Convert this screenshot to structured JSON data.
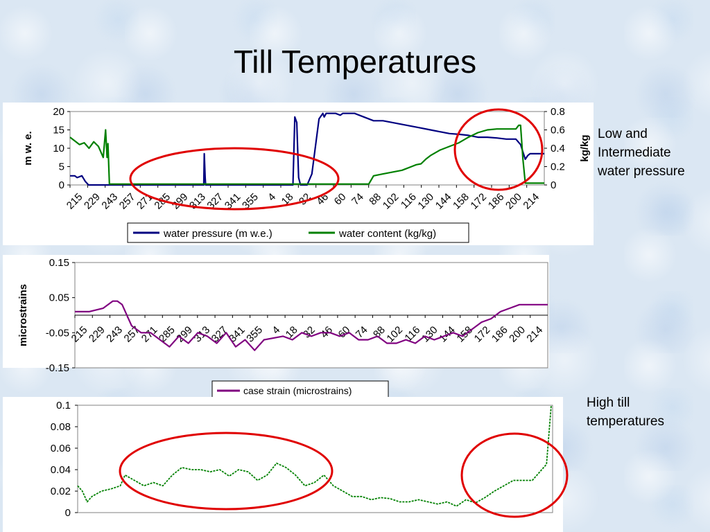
{
  "title": "Till Temperatures",
  "annotations": {
    "callout_1": "Low and Intermediate water pressure",
    "callout_2": "High till temperatures"
  },
  "colors": {
    "water_pressure": "#000080",
    "water_content": "#008000",
    "case_strain": "#800080",
    "temperature": "#008000",
    "highlight_circle": "#e00000"
  },
  "chart_data": [
    {
      "type": "line",
      "title": "",
      "ylabel": "m w. e.",
      "y2label": "kg/kg",
      "ylim": [
        0,
        20
      ],
      "y2lim": [
        0,
        0.8
      ],
      "yticks": [
        "0",
        "5",
        "10",
        "15",
        "20"
      ],
      "y2ticks": [
        "0",
        "0.2",
        "0.4",
        "0.6",
        "0.8"
      ],
      "xticks": [
        "215",
        "229",
        "243",
        "257",
        "271",
        "285",
        "299",
        "313",
        "327",
        "341",
        "355",
        "4",
        "18",
        "32",
        "46",
        "60",
        "74",
        "88",
        "102",
        "116",
        "130",
        "144",
        "158",
        "172",
        "186",
        "200",
        "214"
      ],
      "legend_position": "bottom",
      "series": [
        {
          "name": "water pressure (m w.e.)",
          "axis": "left",
          "x": [
            0,
            1,
            1.5,
            2.5,
            3.2,
            3.9,
            20,
            28,
            28.2,
            28.3,
            28.5,
            28.6,
            40,
            46,
            47,
            47.4,
            47.8,
            48.2,
            48.6,
            48.9,
            50,
            51,
            52.5,
            53.3,
            53.6,
            54,
            56,
            57,
            57.5,
            60,
            64,
            66,
            68,
            70,
            72,
            74,
            76,
            78,
            80,
            82,
            84,
            86,
            88,
            90,
            92,
            94,
            95,
            96,
            96.5,
            97,
            100
          ],
          "y": [
            2.5,
            2.5,
            2,
            2.5,
            1,
            0,
            0,
            0,
            0,
            8.5,
            2,
            0,
            0,
            0,
            0,
            18.5,
            17,
            2,
            0,
            0,
            0,
            3,
            18,
            19.5,
            18.5,
            19.5,
            19.5,
            19,
            19.5,
            19.5,
            17.5,
            17.5,
            17,
            16.5,
            16,
            15.5,
            15,
            14.5,
            14,
            13.8,
            13.5,
            13,
            13,
            12.8,
            12.5,
            12.5,
            11,
            7,
            8,
            8.5,
            8.5
          ]
        },
        {
          "name": "water content (kg/kg)",
          "axis": "right",
          "x": [
            0,
            1,
            2,
            3,
            4,
            5,
            6,
            7,
            7.5,
            7.8,
            8,
            8.3,
            20,
            40,
            63,
            64,
            66,
            68,
            70,
            71,
            72,
            73,
            74,
            75,
            76,
            78,
            80,
            82,
            84,
            86,
            88,
            90,
            92,
            94,
            94.6,
            95,
            95.5,
            96,
            97,
            100
          ],
          "y": [
            0.52,
            0.48,
            0.44,
            0.46,
            0.4,
            0.47,
            0.42,
            0.3,
            0.6,
            0.3,
            0.45,
            0.01,
            0.01,
            0.01,
            0.01,
            0.1,
            0.12,
            0.14,
            0.16,
            0.18,
            0.2,
            0.22,
            0.23,
            0.28,
            0.32,
            0.38,
            0.42,
            0.46,
            0.52,
            0.57,
            0.6,
            0.61,
            0.61,
            0.61,
            0.65,
            0.65,
            0.28,
            0.02,
            0.02,
            0.02
          ]
        }
      ]
    },
    {
      "type": "line",
      "title": "",
      "ylabel": "microstrains",
      "ylim": [
        -0.15,
        0.15
      ],
      "yticks": [
        "-0.15",
        "-0.05",
        "0.05",
        "0.15"
      ],
      "xticks": [
        "215",
        "229",
        "243",
        "257",
        "271",
        "285",
        "299",
        "313",
        "327",
        "341",
        "355",
        "4",
        "18",
        "32",
        "46",
        "60",
        "74",
        "88",
        "102",
        "116",
        "130",
        "144",
        "158",
        "172",
        "186",
        "200",
        "214"
      ],
      "legend_position": "bottom",
      "series": [
        {
          "name": "case strain (microstrains)",
          "x": [
            0,
            3,
            6,
            8,
            9,
            10,
            12,
            14,
            16,
            18,
            20,
            22,
            24,
            26,
            28,
            30,
            32,
            34,
            36,
            38,
            40,
            44,
            46,
            48,
            50,
            52,
            54,
            56,
            58,
            60,
            62,
            64,
            66,
            68,
            70,
            72,
            74,
            76,
            78,
            80,
            82,
            84,
            86,
            88,
            90,
            92,
            94,
            96,
            98,
            100
          ],
          "y": [
            0.01,
            0.01,
            0.02,
            0.04,
            0.04,
            0.03,
            -0.03,
            -0.05,
            -0.05,
            -0.07,
            -0.09,
            -0.06,
            -0.08,
            -0.05,
            -0.06,
            -0.08,
            -0.05,
            -0.09,
            -0.07,
            -0.1,
            -0.07,
            -0.06,
            -0.07,
            -0.05,
            -0.06,
            -0.05,
            -0.05,
            -0.06,
            -0.05,
            -0.07,
            -0.07,
            -0.06,
            -0.08,
            -0.08,
            -0.07,
            -0.08,
            -0.06,
            -0.07,
            -0.06,
            -0.05,
            -0.06,
            -0.04,
            -0.02,
            -0.01,
            0.01,
            0.02,
            0.03,
            0.03,
            0.03,
            0.03
          ]
        }
      ]
    },
    {
      "type": "line",
      "title": "",
      "ylim": [
        0,
        0.1
      ],
      "yticks": [
        "0",
        "0.02",
        "0.04",
        "0.06",
        "0.08",
        "0.1"
      ],
      "xticks": [],
      "series": [
        {
          "x": [
            0,
            1,
            2,
            3,
            5,
            7,
            9,
            10,
            12,
            14,
            16,
            18,
            20,
            22,
            24,
            26,
            28,
            30,
            32,
            34,
            36,
            38,
            40,
            42,
            44,
            46,
            48,
            50,
            52,
            54,
            56,
            58,
            60,
            62,
            64,
            66,
            68,
            70,
            72,
            74,
            76,
            78,
            80,
            82,
            84,
            86,
            88,
            90,
            92,
            94,
            96,
            97,
            98,
            99,
            100
          ],
          "y": [
            0.025,
            0.02,
            0.01,
            0.015,
            0.02,
            0.022,
            0.025,
            0.035,
            0.03,
            0.025,
            0.028,
            0.025,
            0.035,
            0.042,
            0.04,
            0.04,
            0.038,
            0.04,
            0.034,
            0.04,
            0.038,
            0.03,
            0.035,
            0.046,
            0.042,
            0.035,
            0.025,
            0.028,
            0.035,
            0.025,
            0.02,
            0.015,
            0.015,
            0.012,
            0.014,
            0.013,
            0.01,
            0.01,
            0.012,
            0.01,
            0.008,
            0.01,
            0.006,
            0.012,
            0.009,
            0.014,
            0.02,
            0.025,
            0.03,
            0.03,
            0.03,
            0.035,
            0.04,
            0.045,
            0.1
          ]
        }
      ]
    }
  ]
}
